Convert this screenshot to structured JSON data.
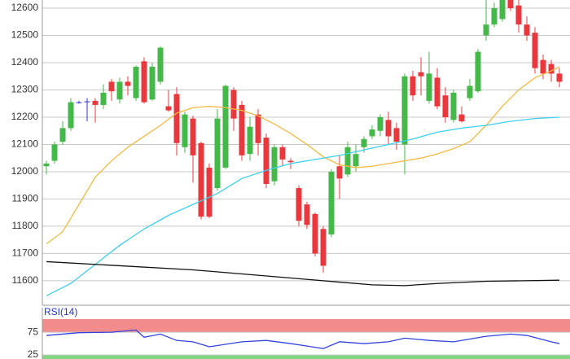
{
  "chart_data": [
    {
      "type": "candlestick",
      "up_color": "#44b849",
      "down_color": "#e8383d",
      "doji_color": "#3333cc",
      "open": [
        12020,
        12040,
        12110,
        12160,
        12255,
        12258,
        12260,
        12245,
        12330,
        12265,
        12330,
        12270,
        12405,
        12265,
        12330,
        12240,
        12285,
        12090,
        12195,
        12105,
        12015,
        11940,
        12015,
        12300,
        12245,
        12065,
        12210,
        12125,
        11965,
        12090,
        12040,
        11940,
        11880,
        11845,
        11790,
        11770,
        12020,
        11990,
        12020,
        12090,
        12130,
        12150,
        12190,
        12160,
        12100,
        12350,
        12365,
        12260,
        12345,
        12280,
        12190,
        12210,
        12270,
        12295,
        12500,
        12540,
        12560,
        12630,
        12610,
        12540,
        12510,
        12410,
        12395,
        12360
      ],
      "high": [
        12040,
        12110,
        12185,
        12270,
        12260,
        12270,
        12270,
        12320,
        12340,
        12345,
        12350,
        12390,
        12420,
        12400,
        12460,
        12300,
        12310,
        12220,
        12205,
        12110,
        12030,
        12230,
        12320,
        12310,
        12260,
        12200,
        12230,
        12140,
        12100,
        12100,
        12050,
        11950,
        11890,
        11850,
        11800,
        12010,
        12060,
        12110,
        12100,
        12130,
        12170,
        12210,
        12220,
        12180,
        12360,
        12370,
        12420,
        12440,
        12380,
        12310,
        12300,
        12240,
        12340,
        12450,
        12630,
        12620,
        12630,
        12630,
        12630,
        12570,
        12530,
        12430,
        12410,
        12380
      ],
      "low": [
        11990,
        12030,
        12100,
        12150,
        12250,
        12185,
        12180,
        12230,
        12260,
        12250,
        12280,
        12260,
        12250,
        12260,
        12320,
        12220,
        12060,
        12070,
        11960,
        11825,
        11830,
        11930,
        12010,
        12150,
        12040,
        12040,
        12060,
        11940,
        11950,
        12020,
        12010,
        11800,
        11790,
        11690,
        11630,
        11760,
        11900,
        11980,
        12000,
        12070,
        12120,
        12130,
        12100,
        12080,
        11990,
        12260,
        12280,
        12250,
        12230,
        12180,
        12180,
        12180,
        12260,
        12290,
        12480,
        12530,
        12550,
        12590,
        12510,
        12480,
        12360,
        12340,
        12330,
        12310
      ],
      "close": [
        12030,
        12100,
        12160,
        12255,
        12255,
        12258,
        12245,
        12290,
        12295,
        12330,
        12315,
        12385,
        12255,
        12385,
        12455,
        12225,
        12105,
        12210,
        12060,
        11835,
        11835,
        12195,
        12315,
        12195,
        12060,
        12165,
        12105,
        11955,
        12090,
        12045,
        12035,
        11820,
        11805,
        11700,
        11655,
        12000,
        11975,
        12090,
        12065,
        12120,
        12155,
        12200,
        12130,
        12110,
        12350,
        12280,
        12350,
        12360,
        12240,
        12200,
        12290,
        12185,
        12315,
        12440,
        12540,
        12600,
        12630,
        12600,
        12540,
        12500,
        12380,
        12360,
        12360,
        12330
      ],
      "lines": [
        {
          "color": "#f5b942",
          "x": [
            0,
            2,
            4,
            6,
            8,
            10,
            12,
            14,
            16,
            18,
            20,
            22,
            24,
            26,
            28,
            30,
            32,
            34,
            36,
            38,
            40,
            42,
            44,
            46,
            48,
            50,
            52,
            54,
            56,
            58,
            60,
            62,
            63
          ],
          "values": [
            11735,
            11780,
            11880,
            11980,
            12040,
            12090,
            12130,
            12170,
            12215,
            12235,
            12240,
            12235,
            12225,
            12205,
            12175,
            12140,
            12100,
            12055,
            12025,
            12015,
            12020,
            12030,
            12040,
            12050,
            12065,
            12085,
            12110,
            12170,
            12240,
            12300,
            12345,
            12370,
            12385
          ]
        },
        {
          "color": "#3cd0f0",
          "x": [
            0,
            3,
            6,
            9,
            12,
            15,
            18,
            21,
            24,
            27,
            30,
            33,
            36,
            39,
            42,
            45,
            48,
            51,
            54,
            57,
            60,
            63
          ],
          "values": [
            11545,
            11590,
            11660,
            11730,
            11790,
            11840,
            11880,
            11920,
            11975,
            12005,
            12030,
            12045,
            12060,
            12080,
            12100,
            12120,
            12145,
            12160,
            12170,
            12185,
            12195,
            12200
          ]
        },
        {
          "color": "#111111",
          "x": [
            0,
            9,
            18,
            30,
            36,
            40,
            44,
            48,
            54,
            63
          ],
          "values": [
            11670,
            11655,
            11640,
            11610,
            11595,
            11585,
            11582,
            11590,
            11598,
            11602
          ]
        }
      ],
      "ylim": [
        11510,
        12630
      ],
      "yticks": [
        11600,
        11700,
        11800,
        11900,
        12000,
        12100,
        12200,
        12300,
        12400,
        12500,
        12600
      ],
      "grid": true
    },
    {
      "type": "line",
      "title": "RSI(14)",
      "upper_band_color": "#f28b8b",
      "lower_band_color": "#7fd87f",
      "lines": [
        {
          "color": "#3344dd",
          "x": [
            0,
            4,
            8,
            11,
            12,
            14,
            16,
            18,
            20,
            24,
            27,
            30,
            34,
            36,
            39,
            42,
            44,
            47,
            50,
            54,
            57,
            59,
            62,
            63
          ],
          "values": [
            68,
            74,
            75,
            80,
            64,
            71,
            57,
            54,
            43,
            54,
            57,
            50,
            39,
            54,
            50,
            54,
            62,
            57,
            54,
            66,
            71,
            68,
            54,
            50
          ]
        }
      ],
      "ylim": [
        16,
        104
      ],
      "yticks": [
        25,
        75
      ]
    }
  ]
}
